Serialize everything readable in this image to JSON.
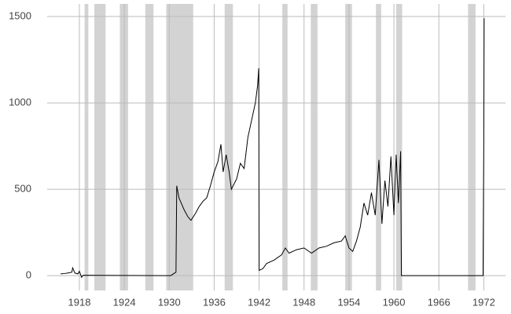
{
  "chart_data": {
    "type": "line",
    "x": [
      1915.5,
      1916,
      1916.5,
      1917,
      1917.1,
      1917.4,
      1917.8,
      1918,
      1918.3,
      1918.5,
      1929.8,
      1930.2,
      1930.9,
      1931.0,
      1931.3,
      1931.6,
      1932,
      1932.5,
      1932.9,
      1933.5,
      1934,
      1934.5,
      1935,
      1935.5,
      1936,
      1936.5,
      1936.9,
      1937.2,
      1937.6,
      1938,
      1938.3,
      1939,
      1939.5,
      1940,
      1940.5,
      1941,
      1941.5,
      1941.8,
      1941.95,
      1942.0,
      1942.5,
      1943,
      1944,
      1945,
      1945.5,
      1946,
      1947,
      1948,
      1949,
      1950,
      1951,
      1952,
      1953,
      1953.5,
      1954,
      1954.5,
      1955,
      1955.5,
      1956,
      1956.5,
      1957,
      1957.5,
      1958,
      1958.4,
      1958.8,
      1959.2,
      1959.6,
      1960,
      1960.3,
      1960.6,
      1960.9,
      1961.0,
      1971.9,
      1972.0,
      1972.05
    ],
    "series": [
      {
        "color": "#000000",
        "values": [
          10,
          12,
          15,
          20,
          45,
          15,
          10,
          25,
          -10,
          2,
          0,
          0,
          20,
          520,
          450,
          420,
          380,
          340,
          320,
          360,
          400,
          430,
          450,
          520,
          600,
          660,
          760,
          600,
          700,
          600,
          500,
          560,
          650,
          620,
          800,
          900,
          1000,
          1100,
          1200,
          30,
          40,
          70,
          90,
          120,
          160,
          130,
          150,
          160,
          130,
          160,
          170,
          190,
          200,
          230,
          160,
          140,
          200,
          280,
          420,
          350,
          480,
          350,
          670,
          300,
          550,
          400,
          690,
          350,
          700,
          420,
          720,
          0,
          0,
          750,
          1490
        ]
      }
    ],
    "xlim": [
      1913.7,
      1974.9
    ],
    "ylim": [
      -86,
      1573
    ],
    "xticks": [
      1918,
      1924,
      1930,
      1936,
      1942,
      1948,
      1954,
      1960,
      1966,
      1972
    ],
    "yticks": [
      0,
      500,
      1000,
      1500
    ],
    "grid": true,
    "shaded_bands": [
      [
        1918.7,
        1919.2
      ],
      [
        1920.0,
        1921.5
      ],
      [
        1923.4,
        1924.5
      ],
      [
        1926.8,
        1927.9
      ],
      [
        1929.6,
        1933.2
      ],
      [
        1937.4,
        1938.5
      ],
      [
        1945.1,
        1945.8
      ],
      [
        1948.9,
        1949.8
      ],
      [
        1953.5,
        1954.4
      ],
      [
        1957.6,
        1958.3
      ],
      [
        1960.3,
        1961.1
      ],
      [
        1969.9,
        1970.9
      ]
    ],
    "band_color": "#d3d3d3"
  }
}
